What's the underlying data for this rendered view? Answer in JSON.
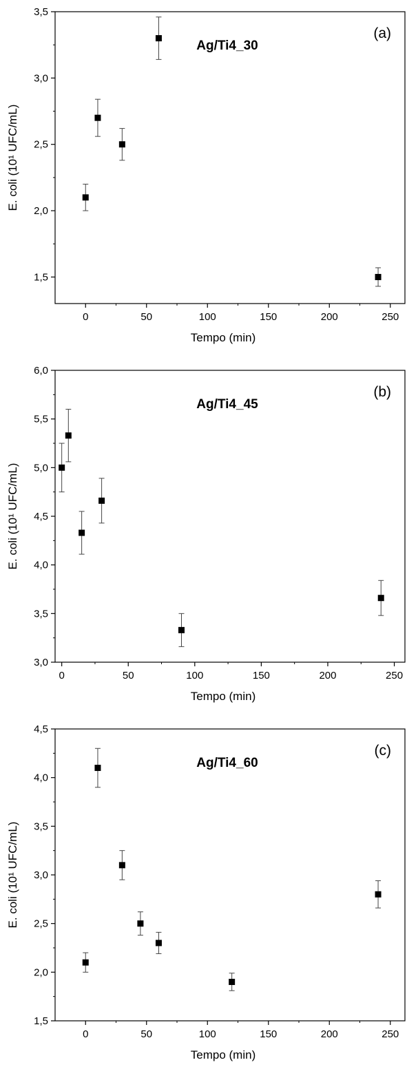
{
  "chart_data": [
    {
      "type": "scatter",
      "title": "Ag/Ti4_30",
      "panel_label": "(a)",
      "xlabel": "Tempo (min)",
      "ylabel": "E. coli (10¹ UFC/mL)",
      "xlim": [
        -25,
        262
      ],
      "ylim": [
        1.3,
        3.5
      ],
      "xticks": [
        0,
        50,
        100,
        150,
        200,
        250
      ],
      "xtick_labels": [
        "0",
        "50",
        "100",
        "150",
        "200",
        "250"
      ],
      "yticks": [
        1.5,
        2.0,
        2.5,
        3.0,
        3.5
      ],
      "ytick_labels": [
        "1,5",
        "2,0",
        "2,5",
        "3,0",
        "3,5"
      ],
      "x": [
        0,
        10,
        30,
        60,
        240
      ],
      "y": [
        2.1,
        2.7,
        2.5,
        3.3,
        1.5
      ],
      "yerr": [
        0.1,
        0.14,
        0.12,
        0.16,
        0.07
      ],
      "marker_color": "#000000"
    },
    {
      "type": "scatter",
      "title": "Ag/Ti4_45",
      "panel_label": "(b)",
      "xlabel": "Tempo (min)",
      "ylabel": "E. coli (10¹ UFC/mL)",
      "xlim": [
        -5,
        258
      ],
      "ylim": [
        3.0,
        6.0
      ],
      "xticks": [
        0,
        50,
        100,
        150,
        200,
        250
      ],
      "xtick_labels": [
        "0",
        "50",
        "100",
        "150",
        "200",
        "250"
      ],
      "yticks": [
        3.0,
        3.5,
        4.0,
        4.5,
        5.0,
        5.5,
        6.0
      ],
      "ytick_labels": [
        "3,0",
        "3,5",
        "4,0",
        "4,5",
        "5,0",
        "5,5",
        "6,0"
      ],
      "x": [
        0,
        5,
        15,
        30,
        90,
        240
      ],
      "y": [
        5.0,
        5.33,
        4.33,
        4.66,
        3.33,
        3.66
      ],
      "yerr": [
        0.25,
        0.27,
        0.22,
        0.23,
        0.17,
        0.18
      ],
      "marker_color": "#000000"
    },
    {
      "type": "scatter",
      "title": "Ag/Ti4_60",
      "panel_label": "(c)",
      "xlabel": "Tempo (min)",
      "ylabel": "E. coli (10¹ UFC/mL)",
      "xlim": [
        -25,
        262
      ],
      "ylim": [
        1.5,
        4.5
      ],
      "xticks": [
        0,
        50,
        100,
        150,
        200,
        250
      ],
      "xtick_labels": [
        "0",
        "50",
        "100",
        "150",
        "200",
        "250"
      ],
      "yticks": [
        1.5,
        2.0,
        2.5,
        3.0,
        3.5,
        4.0,
        4.5
      ],
      "ytick_labels": [
        "1,5",
        "2,0",
        "2,5",
        "3,0",
        "3,5",
        "4,0",
        "4,5"
      ],
      "x": [
        0,
        10,
        30,
        45,
        60,
        120,
        240
      ],
      "y": [
        2.1,
        4.1,
        3.1,
        2.5,
        2.3,
        1.9,
        2.8
      ],
      "yerr": [
        0.1,
        0.2,
        0.15,
        0.12,
        0.11,
        0.09,
        0.14
      ],
      "marker_color": "#000000"
    }
  ]
}
